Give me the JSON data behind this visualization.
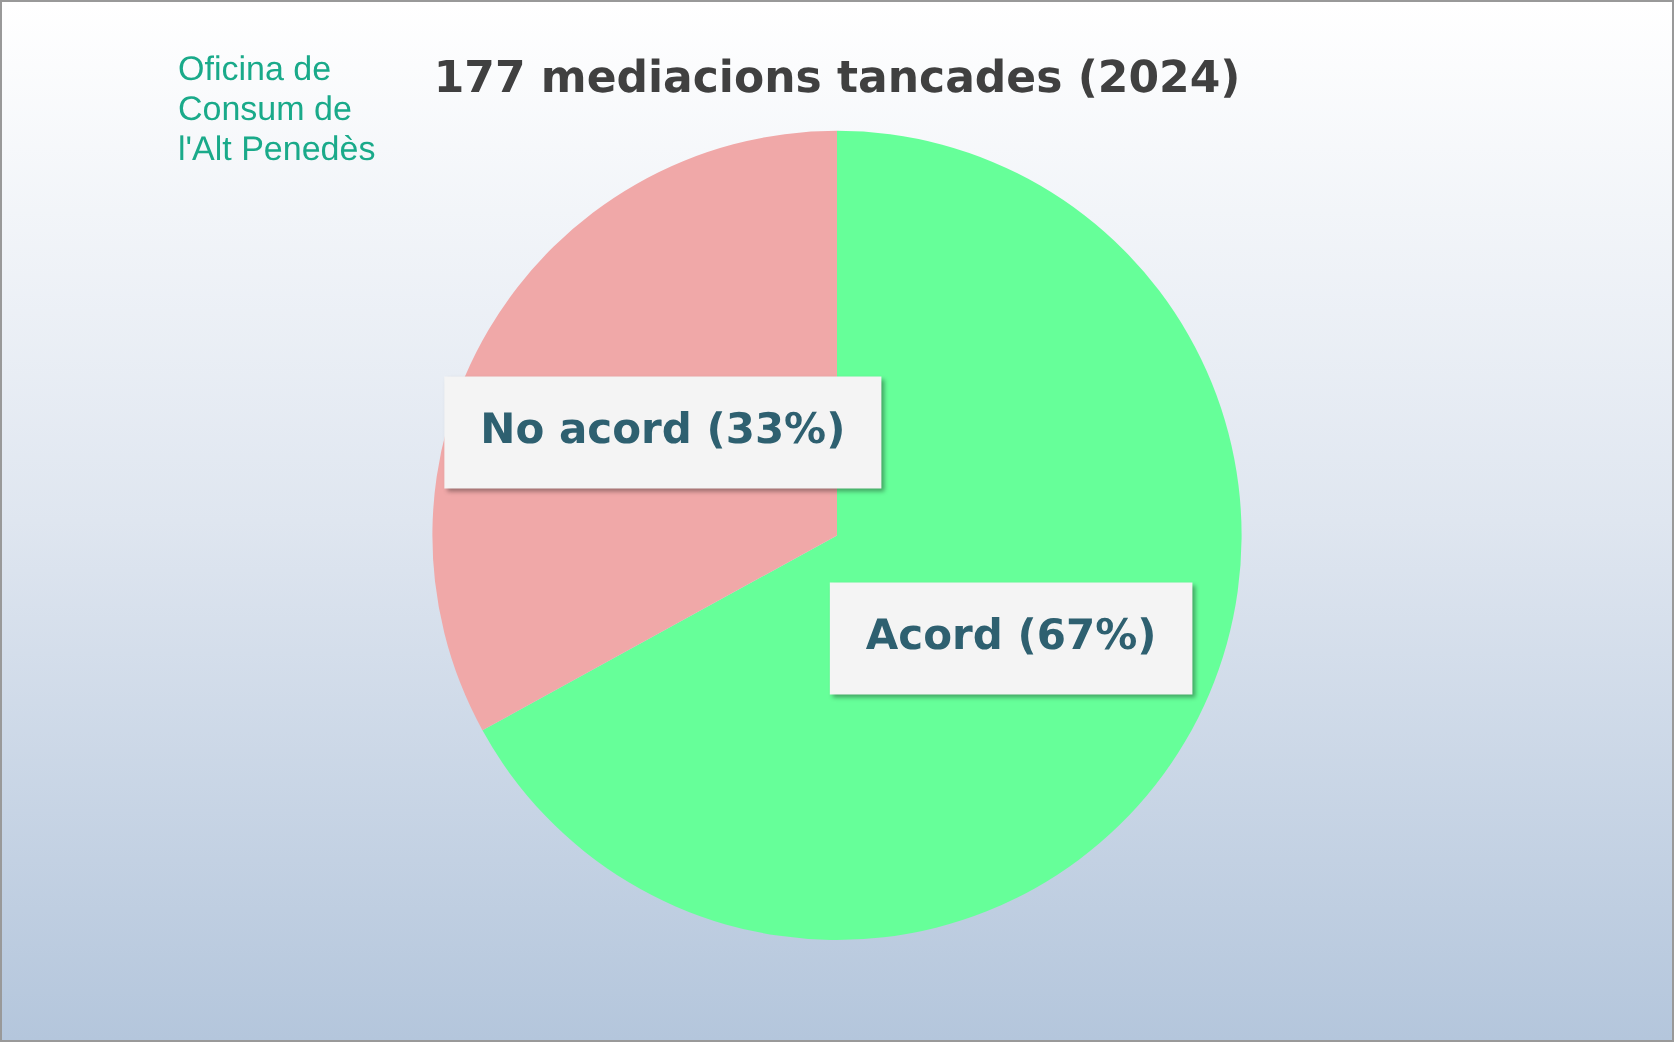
{
  "chart_data": {
    "type": "pie",
    "title": "177 mediacions tancades (2024)",
    "categories": [
      "Acord",
      "No acord"
    ],
    "values": [
      67,
      33
    ],
    "colors": [
      "#66ff99",
      "#f0a8a8"
    ],
    "value_labels": [
      "(67%)",
      "(33%)"
    ],
    "annotations": [
      "Oficina de\nConsum de\nl'Alt Penedès"
    ],
    "legend": false
  }
}
